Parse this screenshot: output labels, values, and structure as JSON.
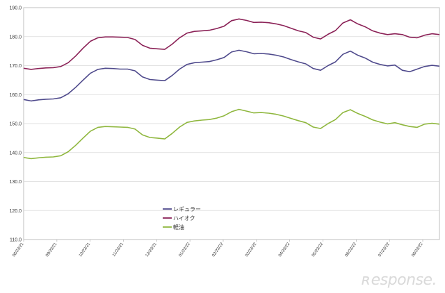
{
  "chart_data": {
    "type": "line",
    "title": "",
    "xlabel": "",
    "ylabel": "",
    "ylim": [
      110,
      190
    ],
    "yticks": [
      "110.0",
      "120.0",
      "130.0",
      "140.0",
      "150.0",
      "160.0",
      "170.0",
      "180.0",
      "190.0"
    ],
    "x_tick_labels": [
      "08/23/21",
      "09/23/21",
      "10/23/21",
      "11/23/21",
      "12/23/21",
      "01/23/22",
      "02/23/22",
      "03/23/22",
      "04/23/22",
      "05/23/22",
      "06/23/22",
      "07/23/22",
      "08/23/22"
    ],
    "grid": true,
    "legend_placement": "center-left",
    "colors": {
      "regular": "#4f4a8c",
      "high_octane": "#8b2257",
      "diesel": "#8fb73e"
    },
    "series": [
      {
        "name": "レギュラー",
        "key": "regular",
        "values": [
          158.3,
          157.8,
          158.2,
          158.4,
          158.5,
          158.9,
          160.3,
          162.5,
          165.0,
          167.4,
          168.7,
          169.1,
          169.0,
          168.8,
          168.8,
          168.2,
          166.1,
          165.2,
          165.0,
          164.8,
          166.6,
          168.8,
          170.4,
          171.0,
          171.2,
          171.4,
          172.0,
          172.8,
          174.7,
          175.3,
          174.8,
          174.1,
          174.2,
          174.0,
          173.6,
          173.0,
          172.1,
          171.3,
          170.6,
          169.0,
          168.4,
          170.0,
          171.3,
          173.9,
          175.0,
          173.6,
          172.6,
          171.2,
          170.4,
          169.9,
          170.2,
          168.4,
          167.9,
          168.8,
          169.7,
          170.1,
          169.8
        ]
      },
      {
        "name": "ハイオク",
        "key": "high_octane",
        "values": [
          169.1,
          168.7,
          169.0,
          169.2,
          169.3,
          169.7,
          171.0,
          173.3,
          176.0,
          178.4,
          179.6,
          179.9,
          179.9,
          179.8,
          179.7,
          179.0,
          177.0,
          176.0,
          175.8,
          175.6,
          177.4,
          179.6,
          181.2,
          181.8,
          182.0,
          182.2,
          182.8,
          183.6,
          185.5,
          186.1,
          185.6,
          184.9,
          185.0,
          184.8,
          184.4,
          183.8,
          182.9,
          182.0,
          181.4,
          179.8,
          179.2,
          180.8,
          182.1,
          184.7,
          185.8,
          184.4,
          183.4,
          182.0,
          181.2,
          180.7,
          181.0,
          180.7,
          179.8,
          179.6,
          180.5,
          181.0,
          180.7
        ]
      },
      {
        "name": "軽油",
        "key": "diesel",
        "values": [
          138.3,
          137.9,
          138.2,
          138.4,
          138.5,
          138.9,
          140.3,
          142.5,
          145.0,
          147.4,
          148.7,
          149.0,
          148.9,
          148.8,
          148.7,
          148.1,
          146.1,
          145.2,
          145.0,
          144.7,
          146.6,
          148.8,
          150.4,
          150.9,
          151.2,
          151.4,
          151.9,
          152.7,
          154.1,
          154.9,
          154.3,
          153.7,
          153.8,
          153.6,
          153.2,
          152.6,
          151.8,
          151.0,
          150.3,
          148.8,
          148.3,
          150.0,
          151.4,
          153.8,
          154.8,
          153.5,
          152.5,
          151.3,
          150.5,
          149.9,
          150.3,
          149.6,
          149.0,
          148.7,
          149.8,
          150.1,
          149.8
        ]
      }
    ]
  }
}
